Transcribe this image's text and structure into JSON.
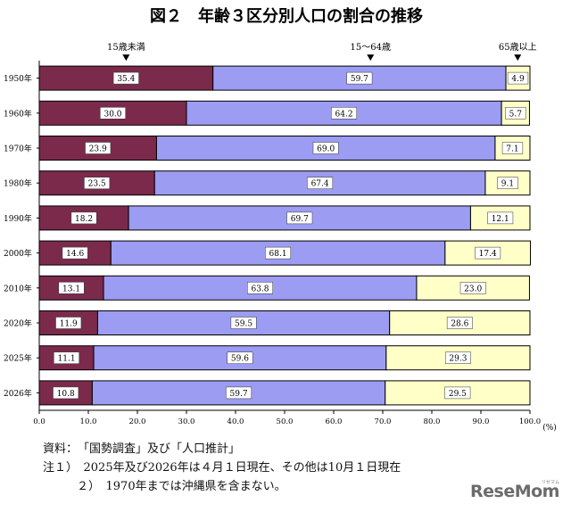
{
  "chart_data": {
    "type": "bar",
    "orientation": "horizontal-stacked-100",
    "title": "図２　年齢３区分別人口の割合の推移",
    "categories": [
      "1950年",
      "1960年",
      "1970年",
      "1980年",
      "1990年",
      "2000年",
      "2010年",
      "2020年",
      "2025年",
      "2026年"
    ],
    "series": [
      {
        "name": "15歳未満",
        "color": "#7b2a4b",
        "values": [
          35.4,
          30.0,
          23.9,
          23.5,
          18.2,
          14.6,
          13.1,
          11.9,
          11.1,
          10.8
        ],
        "labels": [
          "35.4",
          "30.0",
          "23.9",
          "23.5",
          "18.2",
          "14.6",
          "13.1",
          "11.9",
          "11.1",
          "10.8"
        ]
      },
      {
        "name": "15～64歳",
        "color": "#9c9cf2",
        "values": [
          59.7,
          64.2,
          69.0,
          67.4,
          69.7,
          68.1,
          63.8,
          59.5,
          59.6,
          59.7
        ],
        "labels": [
          "59.7",
          "64.2",
          "69.0",
          "67.4",
          "69.7",
          "68.1",
          "63.8",
          "59.5",
          "59.6",
          "59.7"
        ]
      },
      {
        "name": "65歳以上",
        "color": "#ffffc8",
        "values": [
          4.9,
          5.7,
          7.1,
          9.1,
          12.1,
          17.4,
          23.0,
          28.6,
          29.3,
          29.5
        ],
        "labels": [
          "4.9",
          "5.7",
          "7.1",
          "9.1",
          "12.1",
          "17.4",
          "23.0",
          "28.6",
          "29.3",
          "29.5"
        ]
      }
    ],
    "xlim": [
      0,
      100
    ],
    "xticks": [
      "0.0",
      "10.0",
      "20.0",
      "30.0",
      "40.0",
      "50.0",
      "60.0",
      "70.0",
      "80.0",
      "90.0",
      "100.0"
    ],
    "x_unit": "(%)",
    "legend_markers": "above-top-bar"
  },
  "notes": {
    "source": "資料：　「国勢調査」及び「人口推計」",
    "note1": "注１）　2025年及び2026年は４月１日現在、その他は10月１日現在",
    "note2": "２）　1970年までは沖縄県を含まない。"
  },
  "watermark": {
    "text": "ReseMom",
    "sub": "リセマム"
  }
}
